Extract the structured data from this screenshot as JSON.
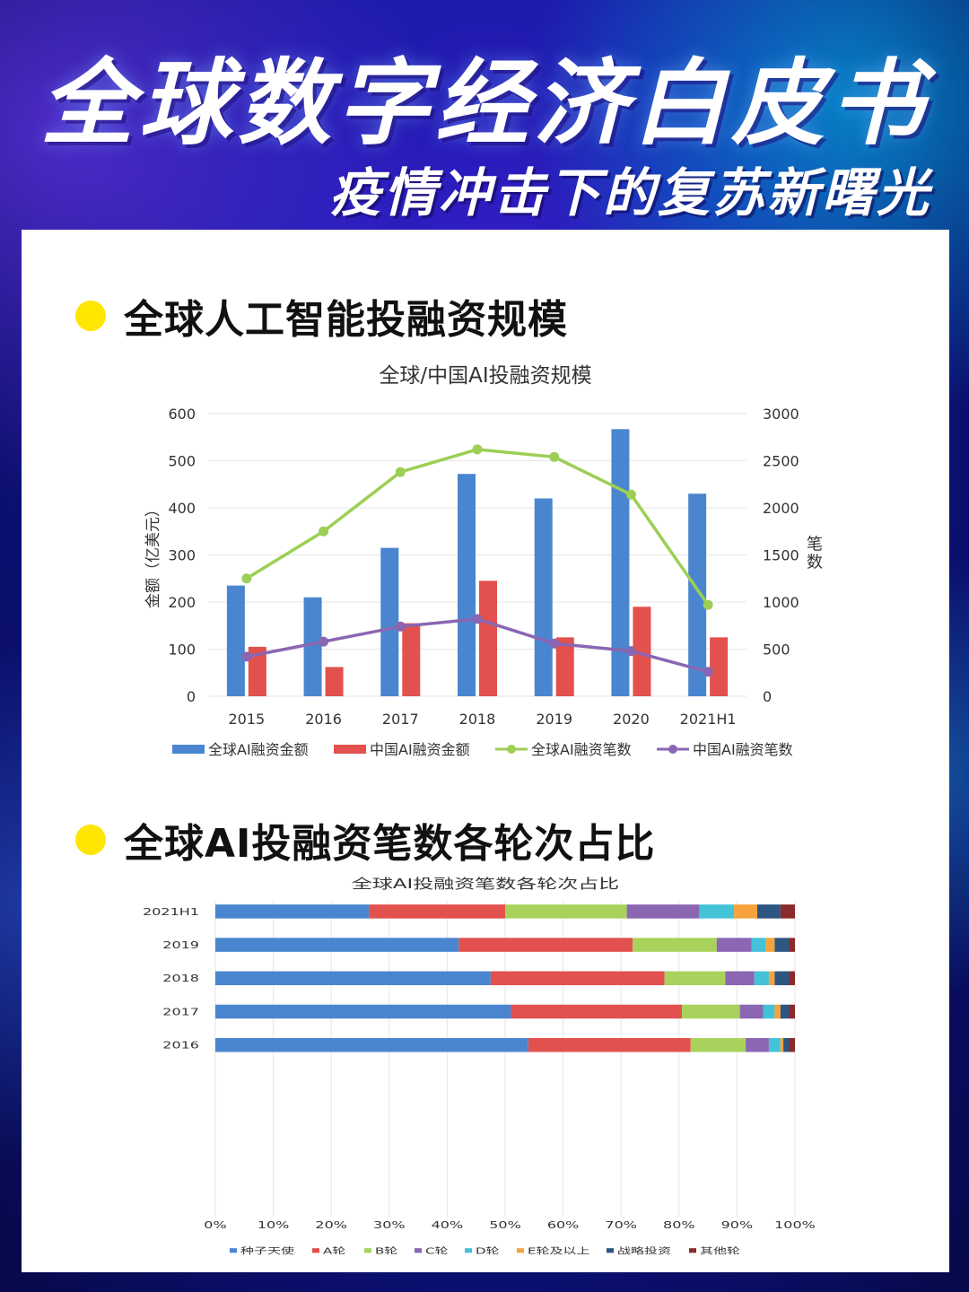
{
  "header": {
    "title": "全球数字经济白皮书",
    "subtitle": "疫情冲击下的复苏新曙光"
  },
  "sections": [
    {
      "title": "全球人工智能投融资规模"
    },
    {
      "title": "全球AI投融资笔数各轮次占比"
    }
  ],
  "chart_data": [
    {
      "type": "bar",
      "title": "全球/中国AI投融资规模",
      "categories": [
        "2015",
        "2016",
        "2017",
        "2018",
        "2019",
        "2020",
        "2021H1"
      ],
      "ylabel": "金额（亿美元）",
      "y2label": "笔数",
      "ylim": [
        0,
        600
      ],
      "y2lim": [
        0,
        3000
      ],
      "yticks": [
        "0",
        "100",
        "200",
        "300",
        "400",
        "500",
        "600"
      ],
      "y2ticks": [
        "0",
        "500",
        "1000",
        "1500",
        "2000",
        "2500",
        "3000"
      ],
      "legend_position": "bottom",
      "series": [
        {
          "name": "全球AI融资金额",
          "kind": "bar",
          "axis": "left",
          "color": "#4a86cf",
          "values": [
            235,
            210,
            315,
            472,
            420,
            567,
            430
          ]
        },
        {
          "name": "中国AI融资金额",
          "kind": "bar",
          "axis": "left",
          "color": "#e2514d",
          "values": [
            105,
            62,
            155,
            245,
            125,
            190,
            125
          ]
        },
        {
          "name": "全球AI融资笔数",
          "kind": "line",
          "axis": "right",
          "color": "#9ccf55",
          "values": [
            1250,
            1750,
            2380,
            2620,
            2540,
            2140,
            970
          ]
        },
        {
          "name": "中国AI融资笔数",
          "kind": "line",
          "axis": "right",
          "color": "#8a66b3",
          "values": [
            420,
            580,
            740,
            820,
            560,
            480,
            260
          ]
        }
      ]
    },
    {
      "type": "bar",
      "orientation": "horizontal-stacked-100",
      "title": "全球AI投融资笔数各轮次占比",
      "categories": [
        "2021H1",
        "2019",
        "2018",
        "2017",
        "2016"
      ],
      "xticks": [
        "0%",
        "10%",
        "20%",
        "30%",
        "40%",
        "50%",
        "60%",
        "70%",
        "80%",
        "90%",
        "100%"
      ],
      "xlim": [
        0,
        100
      ],
      "legend_position": "bottom",
      "series": [
        {
          "name": "种子天使",
          "color": "#4a86cf",
          "values": [
            26.5,
            42.0,
            47.5,
            51.0,
            54.0
          ]
        },
        {
          "name": "A轮",
          "color": "#e2514d",
          "values": [
            23.5,
            30.0,
            30.0,
            29.5,
            28.0
          ]
        },
        {
          "name": "B轮",
          "color": "#a8d25c",
          "values": [
            21.0,
            14.5,
            10.5,
            10.0,
            9.5
          ]
        },
        {
          "name": "C轮",
          "color": "#8a66b3",
          "values": [
            12.5,
            6.0,
            5.0,
            4.0,
            4.0
          ]
        },
        {
          "name": "D轮",
          "color": "#43c2d8",
          "values": [
            6.0,
            2.5,
            2.5,
            2.0,
            2.0
          ]
        },
        {
          "name": "E轮及以上",
          "color": "#f7a23c",
          "values": [
            4.0,
            1.5,
            1.0,
            1.0,
            0.5
          ]
        },
        {
          "name": "战略投资",
          "color": "#2d5680",
          "values": [
            4.0,
            2.5,
            2.5,
            1.5,
            1.0
          ]
        },
        {
          "name": "其他轮",
          "color": "#8b2a2a",
          "values": [
            2.5,
            1.0,
            1.0,
            1.0,
            1.0
          ]
        }
      ]
    }
  ]
}
